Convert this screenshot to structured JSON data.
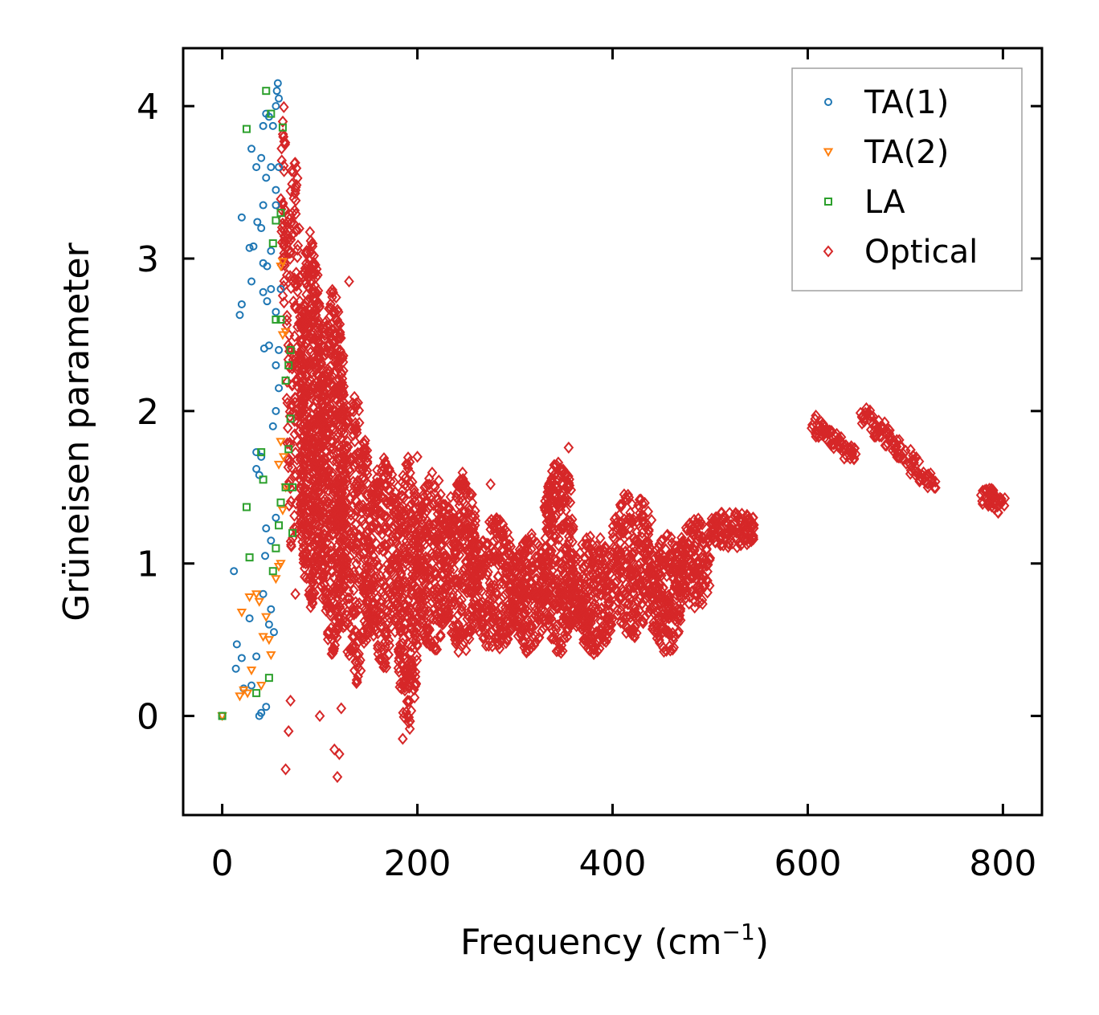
{
  "chart_data": {
    "type": "scatter",
    "title": "",
    "xlabel": "Frequency (cm",
    "xlabel_superscript": "−1",
    "xlabel_suffix": ")",
    "ylabel": "Grüneisen parameter",
    "xlim": [
      -40,
      840
    ],
    "ylim": [
      -0.65,
      4.38
    ],
    "x_ticks": [
      0,
      200,
      400,
      600,
      800
    ],
    "x_tick_labels": [
      "0",
      "200",
      "400",
      "600",
      "800"
    ],
    "y_ticks": [
      0,
      1,
      2,
      3,
      4
    ],
    "y_tick_labels": [
      "0",
      "1",
      "2",
      "3",
      "4"
    ],
    "legend_position": "top-right",
    "grid": false,
    "series": [
      {
        "name": "TA(1)",
        "marker": "circle",
        "color": "#1f77b4",
        "points": [
          [
            0,
            0
          ],
          [
            12,
            0.95
          ],
          [
            15,
            0.47
          ],
          [
            14,
            0.31
          ],
          [
            20,
            0.38
          ],
          [
            22,
            0.18
          ],
          [
            28,
            0.64
          ],
          [
            30,
            0.2
          ],
          [
            35,
            0.39
          ],
          [
            38,
            0.0
          ],
          [
            40,
            0.02
          ],
          [
            45,
            0.06
          ],
          [
            42,
            0.8
          ],
          [
            48,
            0.6
          ],
          [
            50,
            0.7
          ],
          [
            53,
            0.55
          ],
          [
            44,
            1.05
          ],
          [
            50,
            1.15
          ],
          [
            55,
            1.3
          ],
          [
            45,
            1.23
          ],
          [
            35,
            1.62
          ],
          [
            38,
            1.58
          ],
          [
            40,
            1.7
          ],
          [
            35,
            1.73
          ],
          [
            52,
            1.9
          ],
          [
            55,
            2.0
          ],
          [
            58,
            2.15
          ],
          [
            43,
            2.41
          ],
          [
            48,
            2.43
          ],
          [
            55,
            2.3
          ],
          [
            58,
            2.4
          ],
          [
            18,
            2.63
          ],
          [
            20,
            2.7
          ],
          [
            30,
            2.85
          ],
          [
            42,
            2.78
          ],
          [
            46,
            2.72
          ],
          [
            50,
            2.8
          ],
          [
            55,
            2.65
          ],
          [
            60,
            2.8
          ],
          [
            20,
            3.27
          ],
          [
            28,
            3.07
          ],
          [
            32,
            3.08
          ],
          [
            36,
            3.24
          ],
          [
            40,
            3.2
          ],
          [
            42,
            2.97
          ],
          [
            46,
            2.95
          ],
          [
            50,
            3.05
          ],
          [
            55,
            3.35
          ],
          [
            42,
            3.35
          ],
          [
            30,
            3.72
          ],
          [
            35,
            3.6
          ],
          [
            40,
            3.66
          ],
          [
            45,
            3.53
          ],
          [
            50,
            3.6
          ],
          [
            55,
            3.45
          ],
          [
            58,
            3.6
          ],
          [
            42,
            3.87
          ],
          [
            45,
            3.95
          ],
          [
            48,
            3.93
          ],
          [
            52,
            3.87
          ],
          [
            55,
            4.0
          ],
          [
            56,
            4.1
          ],
          [
            57,
            4.15
          ],
          [
            58,
            4.05
          ]
        ]
      },
      {
        "name": "TA(2)",
        "marker": "triangle-down",
        "color": "#ff7f0e",
        "points": [
          [
            0,
            0
          ],
          [
            18,
            0.13
          ],
          [
            20,
            0.68
          ],
          [
            22,
            0.17
          ],
          [
            26,
            0.15
          ],
          [
            28,
            0.78
          ],
          [
            30,
            0.3
          ],
          [
            35,
            0.8
          ],
          [
            38,
            0.75
          ],
          [
            40,
            0.2
          ],
          [
            42,
            0.52
          ],
          [
            45,
            0.65
          ],
          [
            48,
            0.5
          ],
          [
            50,
            0.4
          ],
          [
            55,
            0.9
          ],
          [
            58,
            0.98
          ],
          [
            60,
            1.0
          ],
          [
            62,
            1.35
          ],
          [
            65,
            1.5
          ],
          [
            58,
            1.65
          ],
          [
            60,
            1.8
          ],
          [
            63,
            1.7
          ],
          [
            62,
            2.5
          ],
          [
            65,
            2.52
          ],
          [
            60,
            2.95
          ],
          [
            62,
            2.98
          ]
        ]
      },
      {
        "name": "LA",
        "marker": "square",
        "color": "#2ca02c",
        "points": [
          [
            0,
            0
          ],
          [
            25,
            1.37
          ],
          [
            28,
            1.04
          ],
          [
            35,
            0.15
          ],
          [
            40,
            1.73
          ],
          [
            42,
            1.55
          ],
          [
            48,
            0.25
          ],
          [
            52,
            0.95
          ],
          [
            55,
            1.1
          ],
          [
            58,
            1.25
          ],
          [
            60,
            1.4
          ],
          [
            65,
            1.5
          ],
          [
            68,
            1.75
          ],
          [
            70,
            1.95
          ],
          [
            72,
            1.5
          ],
          [
            72,
            1.2
          ],
          [
            65,
            2.2
          ],
          [
            68,
            2.3
          ],
          [
            70,
            2.4
          ],
          [
            55,
            2.6
          ],
          [
            60,
            2.6
          ],
          [
            52,
            3.1
          ],
          [
            55,
            3.25
          ],
          [
            60,
            3.3
          ],
          [
            45,
            4.1
          ],
          [
            50,
            3.95
          ],
          [
            25,
            3.85
          ],
          [
            62,
            3.86
          ]
        ]
      },
      {
        "name": "Optical",
        "marker": "diamond",
        "color": "#d62728",
        "regions": [
          [
            [
              60,
              65,
              2.7,
              4.0,
              40
            ],
            [
              66,
              80,
              1.0,
              3.7,
              140
            ],
            [
              80,
              100,
              0.7,
              3.2,
              500
            ],
            [
              100,
              125,
              0.4,
              2.8,
              500
            ],
            [
              120,
              150,
              0.2,
              2.1,
              300
            ],
            [
              150,
              180,
              0.3,
              1.7,
              250
            ],
            [
              180,
              200,
              -0.1,
              1.7,
              250
            ],
            [
              200,
              230,
              0.4,
              1.6,
              250
            ],
            [
              230,
              260,
              0.4,
              1.6,
              250
            ],
            [
              260,
              300,
              0.4,
              1.3,
              250
            ],
            [
              300,
              330,
              0.4,
              1.2,
              200
            ],
            [
              330,
              360,
              0.4,
              1.7,
              300
            ],
            [
              360,
              400,
              0.4,
              1.2,
              250
            ],
            [
              400,
              440,
              0.5,
              1.5,
              250
            ],
            [
              440,
              470,
              0.4,
              1.2,
              200
            ],
            [
              470,
              500,
              0.7,
              1.3,
              150
            ],
            [
              500,
              545,
              1.1,
              1.35,
              120
            ]
          ],
          {
            "lines": [
              [
                [
                  605,
                  1.92
                ],
                [
                  650,
                  1.7
                ],
                8,
                70
              ],
              [
                [
                  655,
                  2.0
                ],
                [
                  730,
                  1.5
                ],
                10,
                100
              ],
              [
                [
                  780,
                  1.45
                ],
                [
                  800,
                  1.38
                ],
                6,
                40
              ]
            ]
          }
        ],
        "outliers": [
          [
            65,
            -0.35
          ],
          [
            68,
            -0.1
          ],
          [
            70,
            0.1
          ],
          [
            75,
            0.8
          ],
          [
            100,
            0.0
          ],
          [
            115,
            -0.22
          ],
          [
            118,
            -0.4
          ],
          [
            120,
            -0.25
          ],
          [
            122,
            0.05
          ],
          [
            130,
            2.85
          ],
          [
            185,
            -0.15
          ],
          [
            190,
            0.0
          ],
          [
            200,
            1.7
          ],
          [
            275,
            1.52
          ],
          [
            355,
            1.76
          ]
        ]
      }
    ]
  }
}
